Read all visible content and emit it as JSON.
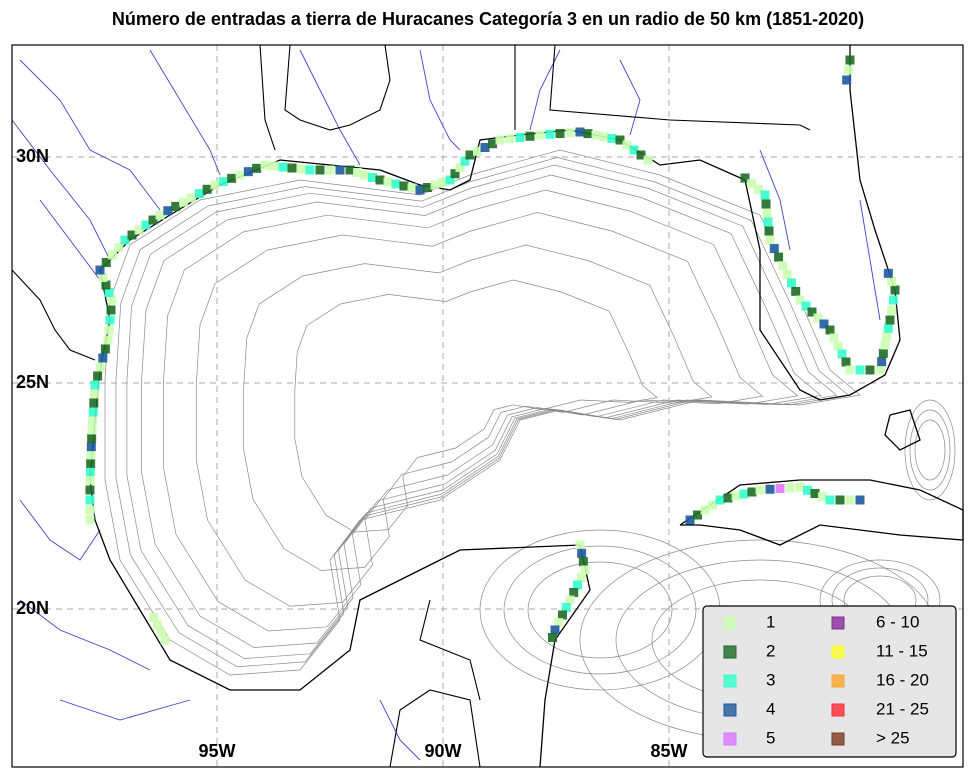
{
  "title": "Número de entradas a tierra de Huracanes Categoría 3 en un radio de 50 km (1851-2020)",
  "grid_labels": {
    "lat": [
      "30N",
      "25N",
      "20N"
    ],
    "lon": [
      "95W",
      "90W",
      "85W"
    ]
  },
  "legend": {
    "items": [
      {
        "label": "1",
        "color": "#ccffb3"
      },
      {
        "label": "2",
        "color": "#1e6b26"
      },
      {
        "label": "3",
        "color": "#33ffcc"
      },
      {
        "label": "4",
        "color": "#1f5a9e"
      },
      {
        "label": "5",
        "color": "#dd77ff"
      },
      {
        "label": "6 - 10",
        "color": "#8a2ba0"
      },
      {
        "label": "11 - 15",
        "color": "#ffff33"
      },
      {
        "label": "16 - 20",
        "color": "#ffa52a"
      },
      {
        "label": "21 - 25",
        "color": "#ff2a3a"
      },
      {
        "label": "> 25",
        "color": "#7a3b22"
      }
    ]
  }
}
